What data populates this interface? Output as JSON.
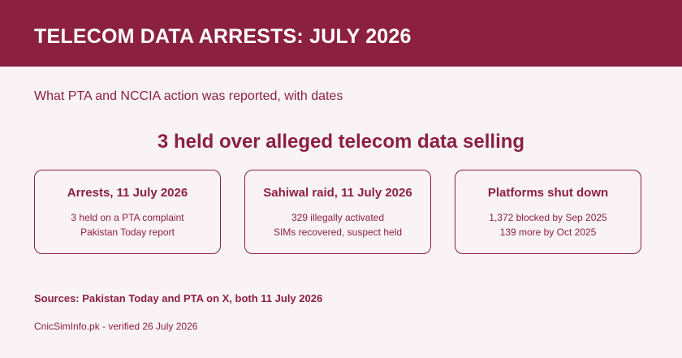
{
  "header": {
    "title": "TELECOM DATA ARRESTS: JULY 2026"
  },
  "subtitle": "What PTA and NCCIA action was reported, with dates",
  "headline": "3 held over alleged telecom data selling",
  "cards": [
    {
      "title": "Arrests, 11 July 2026",
      "lines": [
        "3 held on a PTA complaint",
        "Pakistan Today report"
      ]
    },
    {
      "title": "Sahiwal raid, 11 July 2026",
      "lines": [
        "329 illegally activated",
        "SIMs recovered, suspect held"
      ]
    },
    {
      "title": "Platforms shut down",
      "lines": [
        "1,372 blocked by Sep 2025",
        "139 more by Oct 2025"
      ]
    }
  ],
  "sources": "Sources: Pakistan Today and PTA on X, both 11 July 2026",
  "footer": "CnicSimInfo.pk - verified 26 July 2026",
  "colors": {
    "accent": "#8c2040",
    "background": "#f9f3f5",
    "header_text": "#ffffff"
  }
}
